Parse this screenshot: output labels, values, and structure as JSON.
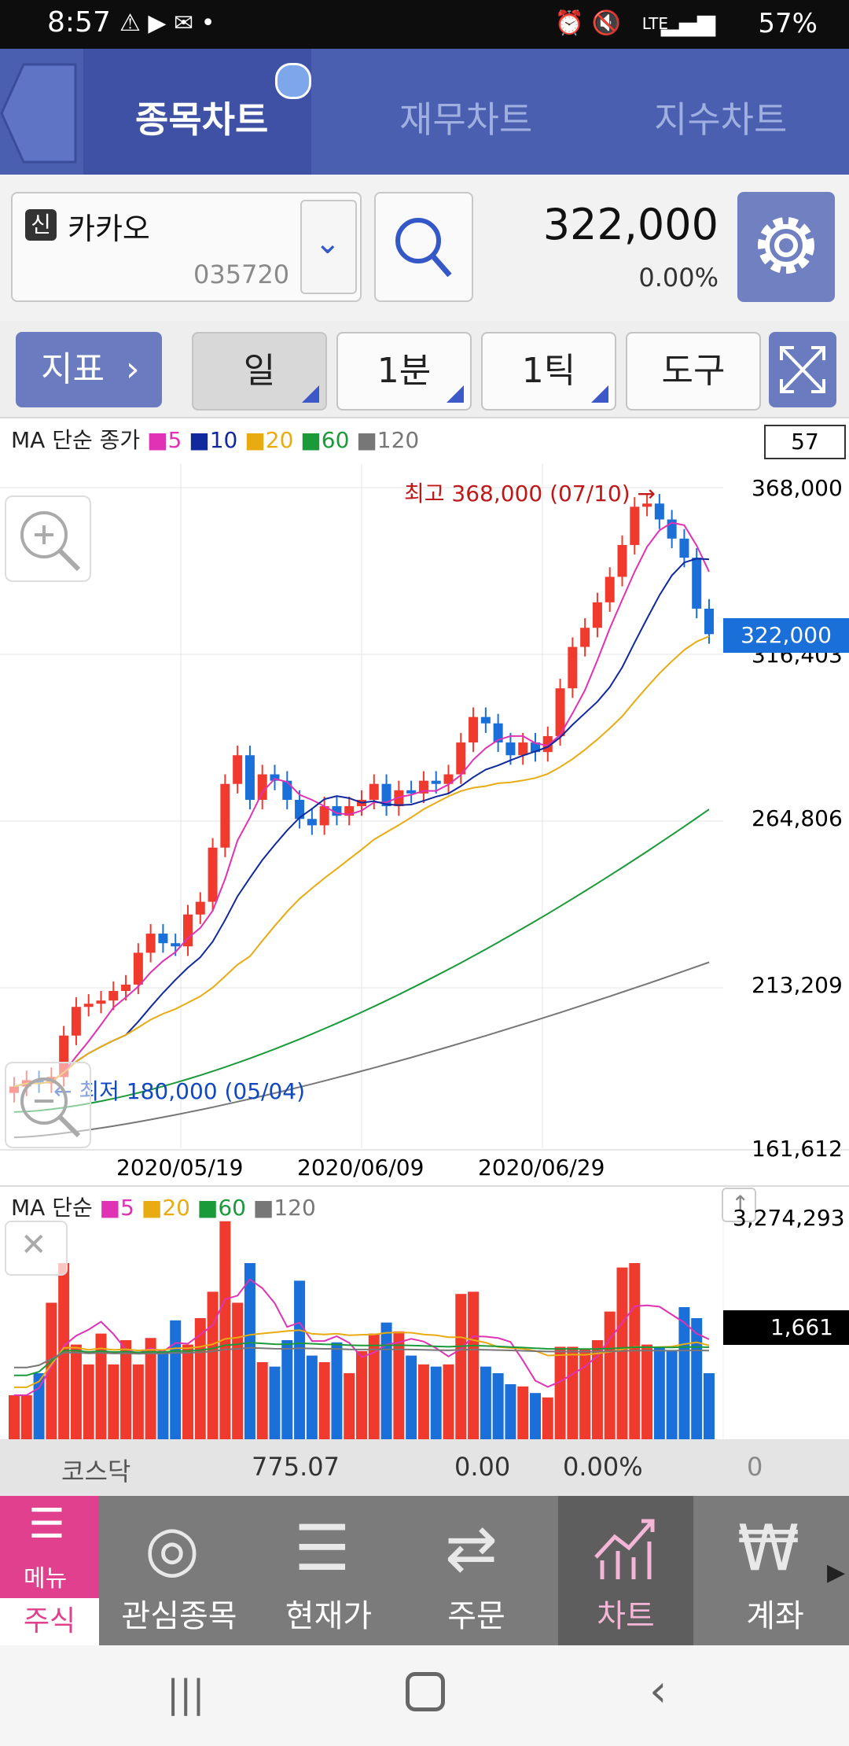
{
  "status_bar": {
    "time": "8:57",
    "battery": "57%",
    "network": "LTE"
  },
  "tabs": [
    {
      "label": "종목차트",
      "active": true
    },
    {
      "label": "재무차트",
      "active": false
    },
    {
      "label": "지수차트",
      "active": false
    }
  ],
  "stock": {
    "badge": "신",
    "name": "카카오",
    "code": "035720",
    "price": "322,000",
    "change": "0.00%"
  },
  "toolbar": {
    "indicator_label": "지표",
    "period": "일",
    "minute": "1분",
    "tick": "1틱",
    "tools": "도구"
  },
  "chart": {
    "legend_title": "MA 단순 종가",
    "ma_labels": [
      "5",
      "10",
      "20",
      "60",
      "120"
    ],
    "count_box": "57",
    "high_annotation": "최고 368,000 (07/10) →",
    "low_annotation": "← 최저 180,000 (05/04)",
    "y_ticks": [
      "368,000",
      "316,403",
      "264,806",
      "213,209",
      "161,612"
    ],
    "current_price_tag": "322,000",
    "x_ticks": [
      "2020/05/19",
      "2020/06/09",
      "2020/06/29"
    ],
    "volume_legend_title": "MA 단순",
    "volume_ma_labels": [
      "5",
      "20",
      "60",
      "120"
    ],
    "volume_max": "3,274,293",
    "volume_current": "1,661",
    "colors": {
      "up": "#f03a2e",
      "down": "#1a6fd8",
      "ma5": "#e032b4",
      "ma10": "#102a9e",
      "ma20": "#e8ab12",
      "ma60": "#1b9a3a",
      "ma120": "#777777"
    }
  },
  "chart_data": {
    "type": "candlestick",
    "x_ticks": [
      "2020/05/19",
      "2020/06/09",
      "2020/06/29"
    ],
    "ylim": [
      161612,
      368000
    ],
    "y_ticks": [
      368000,
      316403,
      264806,
      213209,
      161612
    ],
    "high": {
      "value": 368000,
      "date": "07/10"
    },
    "low": {
      "value": 180000,
      "date": "05/04"
    },
    "last_close": 322000,
    "candles_close": [
      180000,
      182000,
      181000,
      183000,
      196000,
      205000,
      206000,
      207000,
      210000,
      212000,
      222000,
      228000,
      225000,
      224000,
      234000,
      238000,
      255000,
      275000,
      284000,
      270000,
      278000,
      276000,
      270000,
      264000,
      262000,
      268000,
      265000,
      268000,
      270000,
      275000,
      268000,
      273000,
      272000,
      276000,
      275000,
      278000,
      288000,
      296000,
      294000,
      288000,
      284000,
      288000,
      285000,
      290000,
      305000,
      318000,
      324000,
      332000,
      340000,
      350000,
      362000,
      363000,
      358000,
      352000,
      346000,
      330000,
      322000
    ],
    "volume_max": 3274293
  },
  "index_bar": {
    "name": "코스닥",
    "value": "775.07",
    "change": "0.00",
    "pct": "0.00%",
    "vol": "0"
  },
  "bottom_nav": {
    "menu_label": "메뉴",
    "stock_label": "주식",
    "items": [
      "관심종목",
      "현재가",
      "주문",
      "차트",
      "계좌"
    ]
  }
}
